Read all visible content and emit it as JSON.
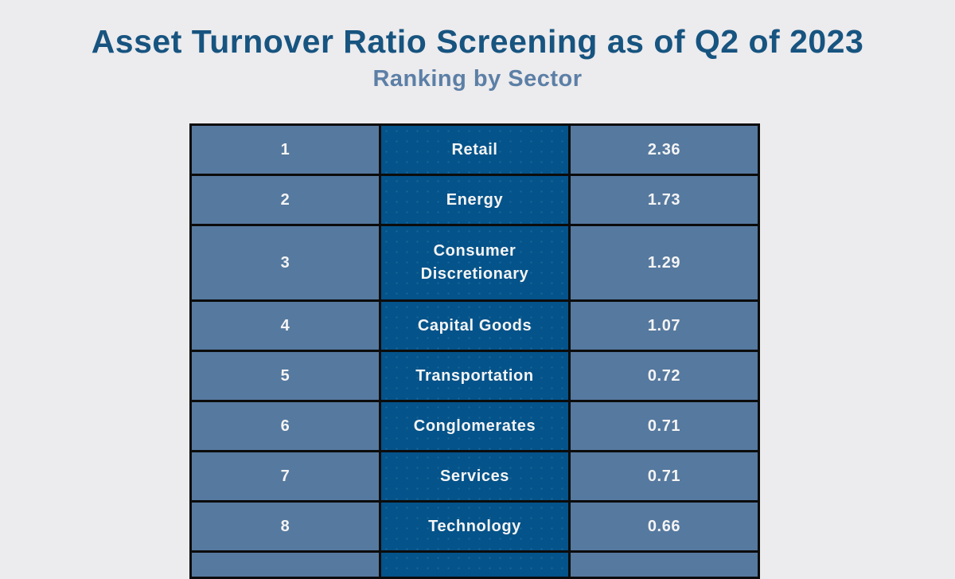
{
  "page": {
    "title": "Asset Turnover Ratio Screening as of Q2 of 2023",
    "subtitle": "Ranking by Sector"
  },
  "colors": {
    "background": "#ECEBED",
    "title_text": "#175480",
    "subtitle_text": "#5C7FA6",
    "rank_cell_bg": "#56799F",
    "sector_cell_bg": "#04538A",
    "value_cell_bg": "#56799F",
    "cell_text": "#F4F4F4",
    "table_border": "#0C0C0C"
  },
  "chart_data": {
    "type": "table",
    "title": "Asset Turnover Ratio Screening as of Q2 of 2023",
    "subtitle": "Ranking by Sector",
    "rows": [
      {
        "rank": "1",
        "sector": "Retail",
        "value": "2.36"
      },
      {
        "rank": "2",
        "sector": "Energy",
        "value": "1.73"
      },
      {
        "rank": "3",
        "sector": "Consumer Discretionary",
        "value": "1.29"
      },
      {
        "rank": "4",
        "sector": "Capital Goods",
        "value": "1.07"
      },
      {
        "rank": "5",
        "sector": "Transportation",
        "value": "0.72"
      },
      {
        "rank": "6",
        "sector": "Conglomerates",
        "value": "0.71"
      },
      {
        "rank": "7",
        "sector": "Services",
        "value": "0.71"
      },
      {
        "rank": "8",
        "sector": "Technology",
        "value": "0.66"
      }
    ]
  }
}
